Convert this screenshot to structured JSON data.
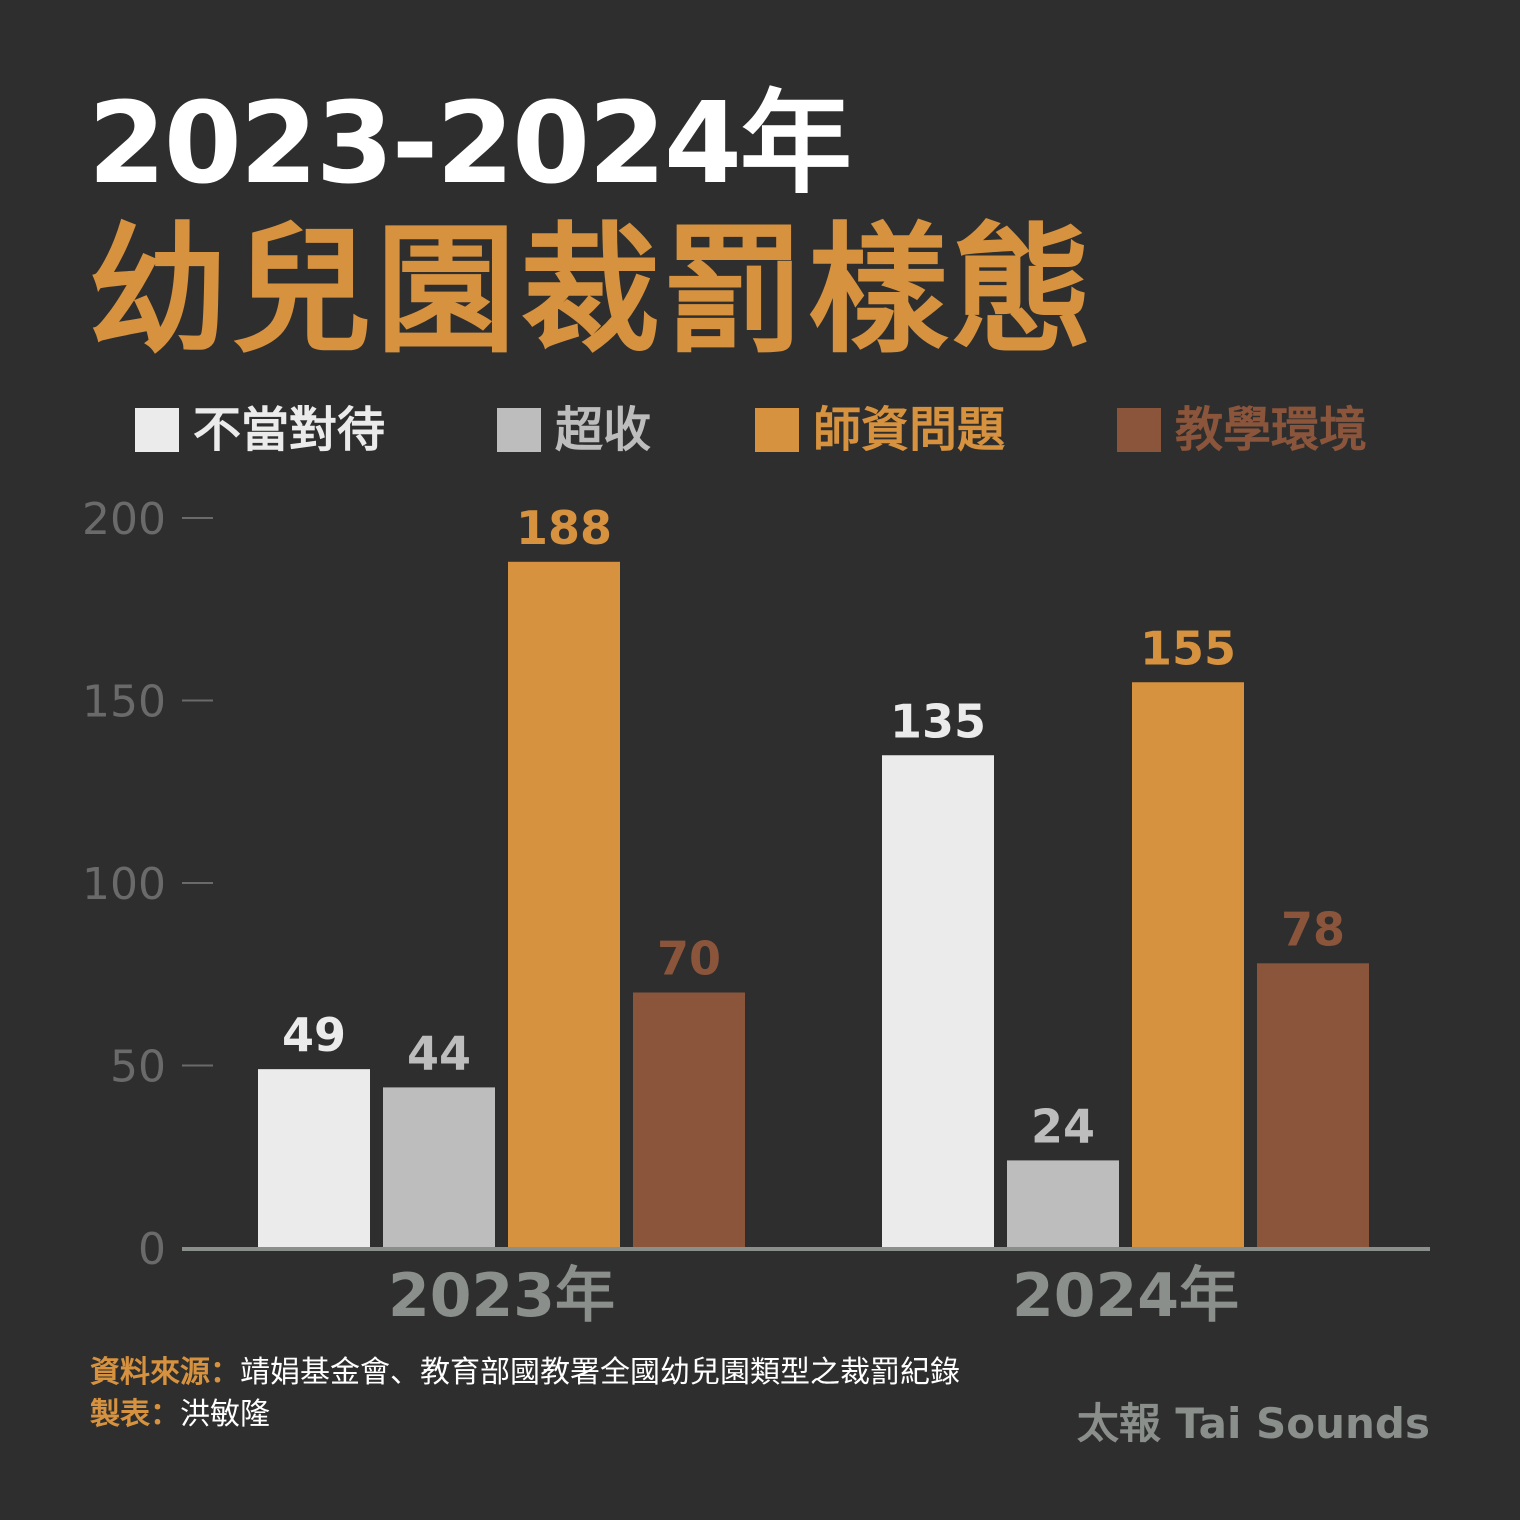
{
  "header": {
    "title_line1": "2023-2024年",
    "title_line2": "幼兒園裁罰樣態"
  },
  "colors": {
    "background": "#2e2e2e",
    "title_accent": "#d6923e",
    "axis": "#8a8f8c",
    "tick": "#6a6a6a"
  },
  "chart_data": {
    "type": "bar",
    "categories": [
      "2023年",
      "2024年"
    ],
    "series": [
      {
        "name": "不當對待",
        "color": "#eaebea",
        "label_color": "#eaebea",
        "values": [
          49,
          135
        ]
      },
      {
        "name": "超收",
        "color": "#bcbdbc",
        "label_color": "#bcbdbc",
        "values": [
          44,
          24
        ]
      },
      {
        "name": "師資問題",
        "color": "#d6923e",
        "label_color": "#d6923e",
        "values": [
          188,
          155
        ]
      },
      {
        "name": "教學環境",
        "color": "#8b553b",
        "label_color": "#8b553b",
        "values": [
          70,
          78
        ]
      }
    ],
    "ylim": [
      0,
      200
    ],
    "yticks": [
      0,
      50,
      100,
      150,
      200
    ],
    "legend_position": "top",
    "grid": false,
    "show_values": true
  },
  "footer": {
    "source_label": "資料來源：",
    "source_text": "靖娟基金會、教育部國教署全國幼兒園類型之裁罰紀錄",
    "maker_label": "製表：",
    "maker_text": "洪敏隆",
    "brand": "太報 Tai Sounds"
  }
}
